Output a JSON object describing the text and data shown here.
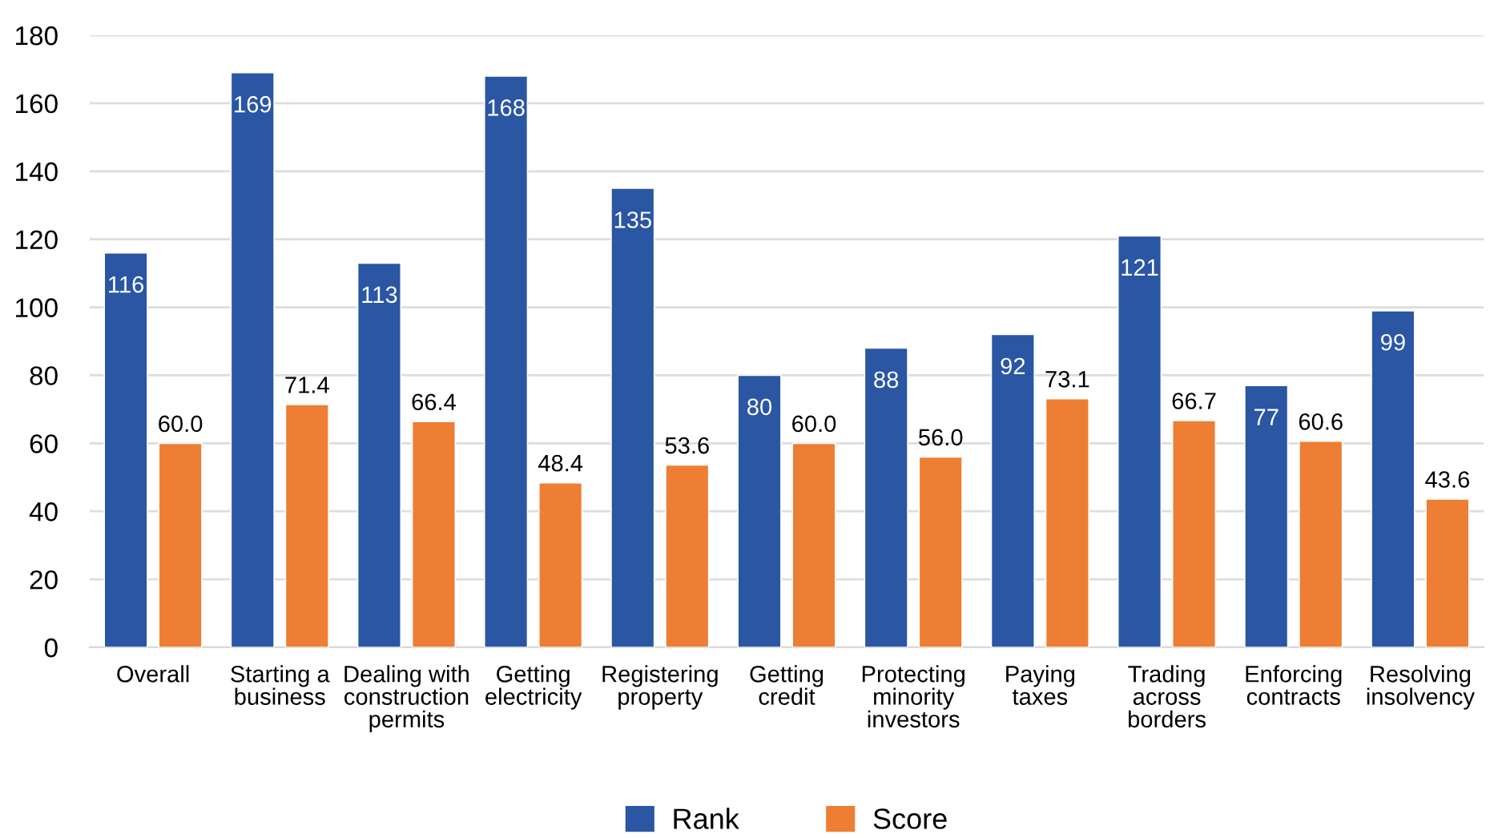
{
  "chart_data": {
    "type": "bar",
    "categories": [
      "Overall",
      "Starting a\nbusiness",
      "Dealing with\nconstruction\npermits",
      "Getting\nelectricity",
      "Registering\nproperty",
      "Getting\ncredit",
      "Protecting\nminority\ninvestors",
      "Paying\ntaxes",
      "Trading\nacross\nborders",
      "Enforcing\ncontracts",
      "Resolving\ninsolvency"
    ],
    "series": [
      {
        "name": "Rank",
        "color": "#2a56a3",
        "values": [
          116,
          169,
          113,
          168,
          135,
          80,
          88,
          92,
          121,
          77,
          99
        ]
      },
      {
        "name": "Score",
        "color": "#ed7e33",
        "values": [
          60.0,
          71.4,
          66.4,
          48.4,
          53.6,
          60.0,
          56.0,
          73.1,
          66.7,
          60.6,
          43.6
        ],
        "value_labels": [
          "60.0",
          "71.4",
          "66.4",
          "48.4",
          "53.6",
          "60.0",
          "56.0",
          "73.1",
          "66.7",
          "60.6",
          "43.6"
        ]
      }
    ],
    "ylim": [
      0,
      180
    ],
    "yticks": [
      0,
      20,
      40,
      60,
      80,
      100,
      120,
      140,
      160,
      180
    ],
    "grid": "y",
    "legend": "bottom",
    "data_labels": true
  }
}
